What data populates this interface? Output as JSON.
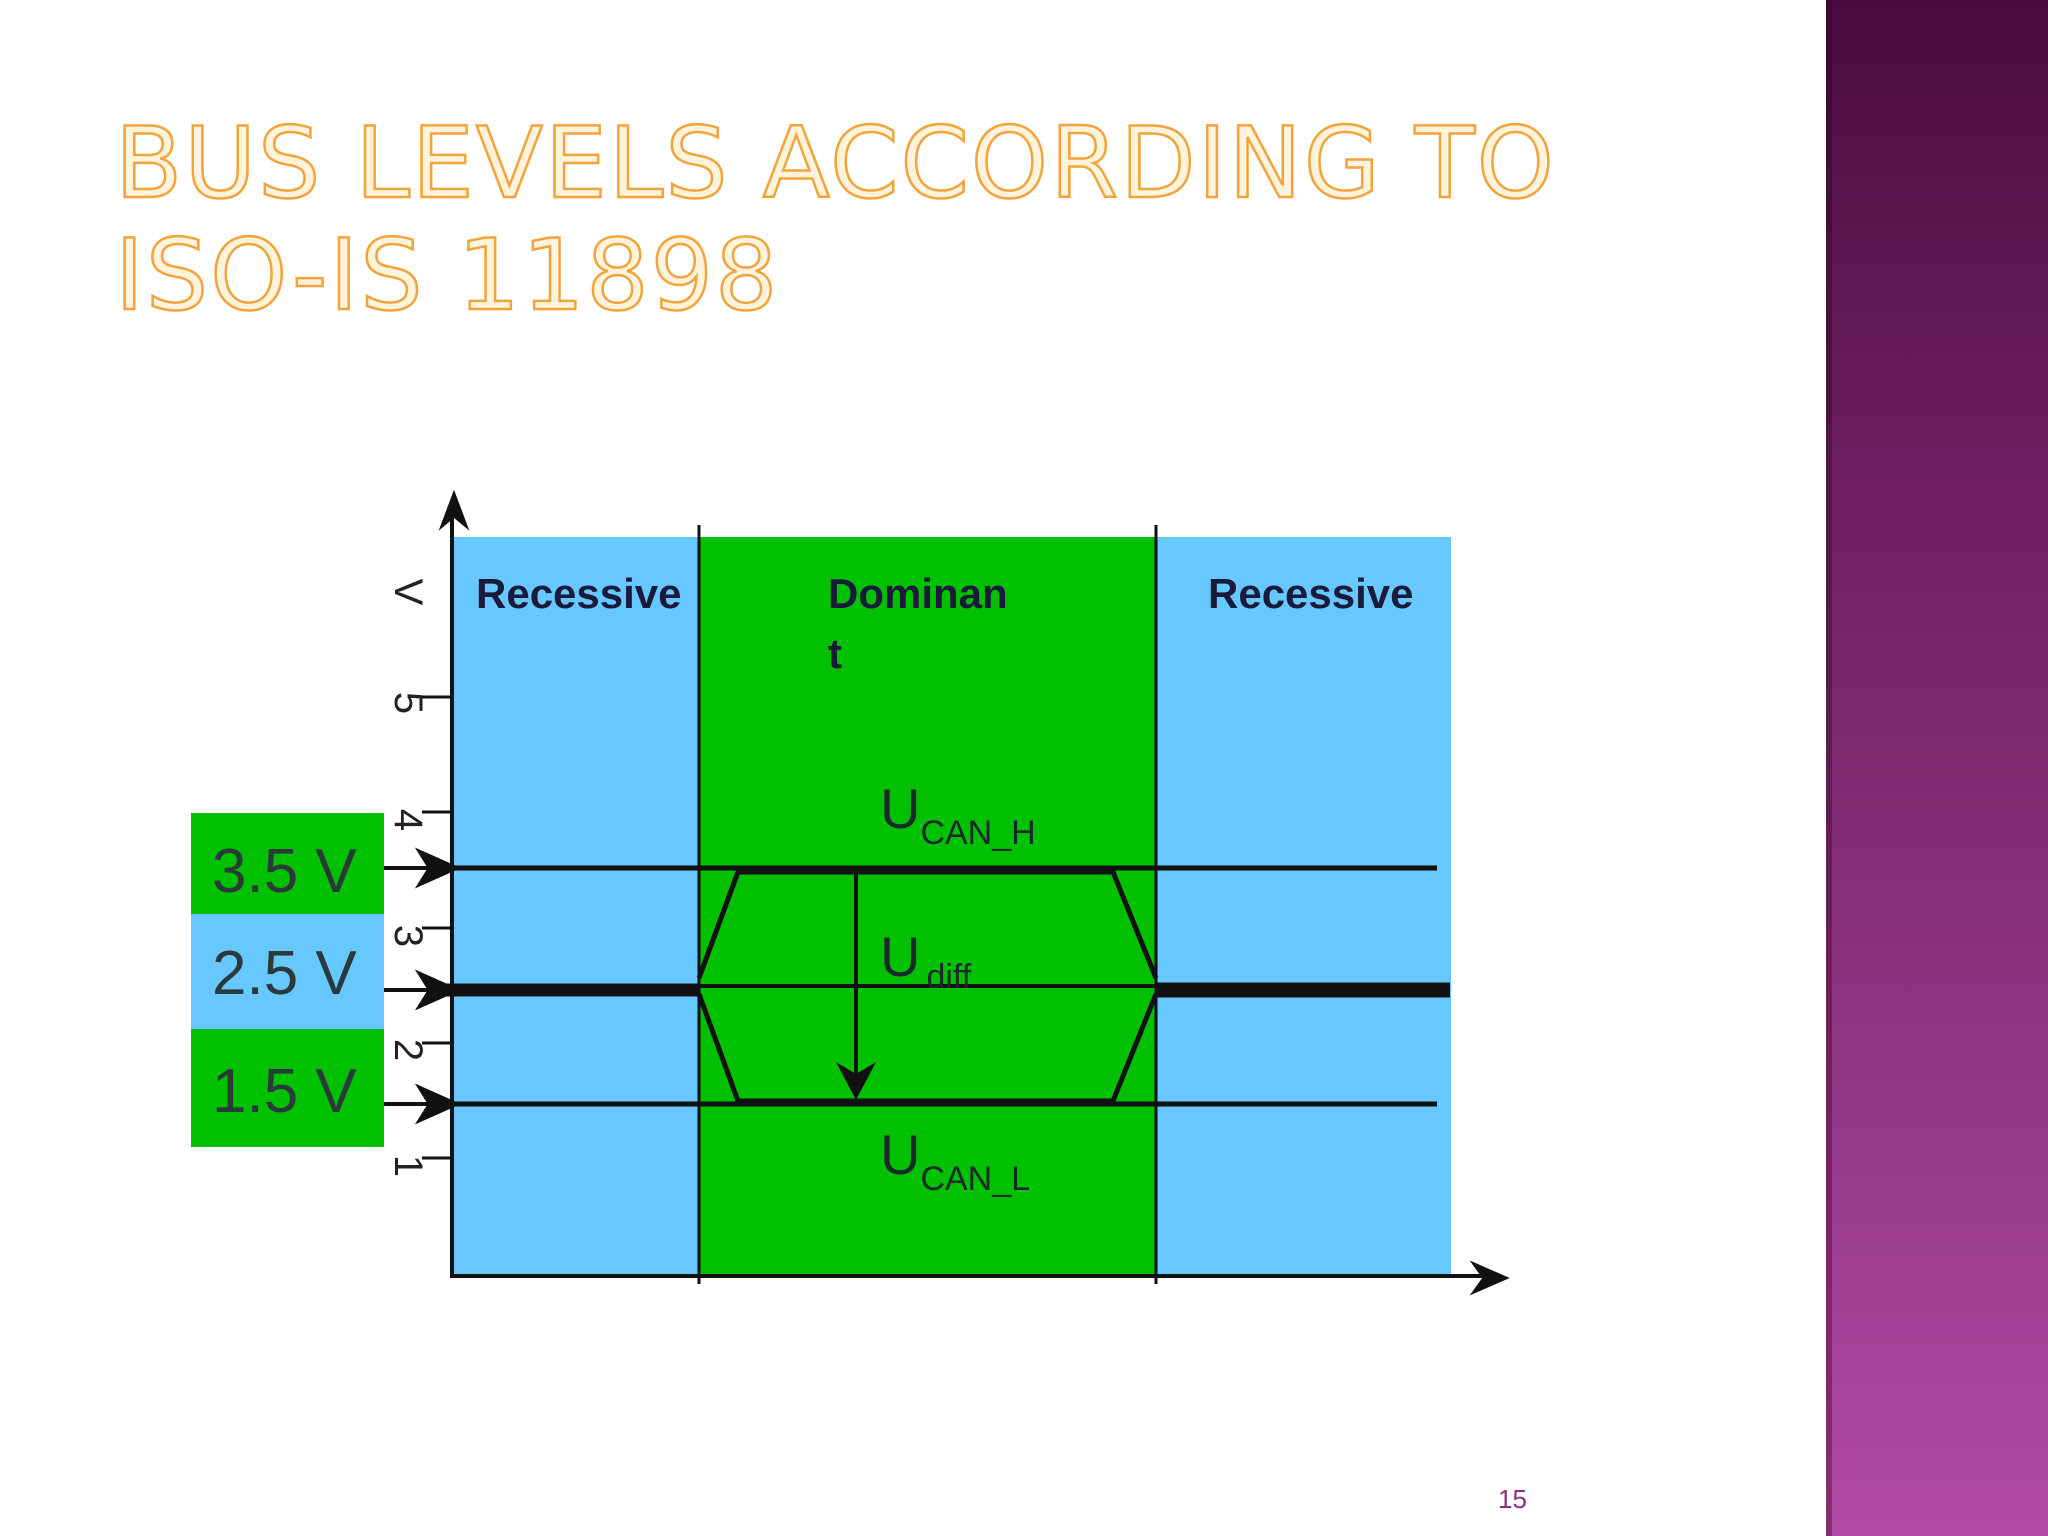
{
  "slide": {
    "title": "Bus levels according to ISO-IS 11898",
    "page_number": "15"
  },
  "diagram": {
    "axis_label": "V",
    "y_ticks": [
      "5",
      "4",
      "3",
      "2",
      "1"
    ],
    "regions": [
      {
        "label": "Recessive"
      },
      {
        "label_line1": "Dominan",
        "label_line2": "t"
      },
      {
        "label": "Recessive"
      }
    ],
    "level_labels": [
      "3.5 V",
      "2.5 V",
      "1.5 V"
    ],
    "signals": {
      "can_h": {
        "main": "U",
        "sub": "CAN_H"
      },
      "diff": {
        "main": "U",
        "sub": "diff"
      },
      "can_l": {
        "main": "U",
        "sub": "CAN_L"
      }
    },
    "colors": {
      "recessive": "#66c8ff",
      "dominant": "#00c000",
      "title_fill": "#fff3dc",
      "title_outline": "#f2a43c",
      "side_bar": "#7a2a6e"
    }
  }
}
